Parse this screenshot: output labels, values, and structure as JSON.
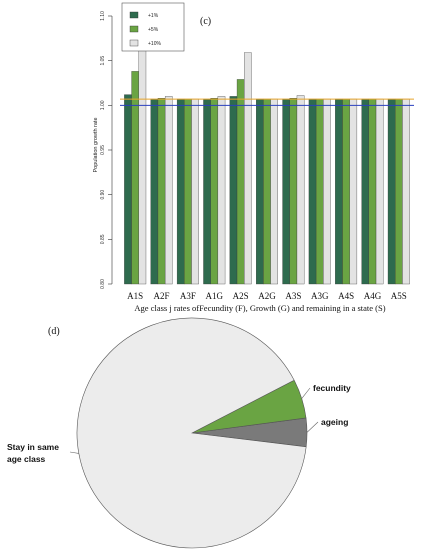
{
  "colors": {
    "dark_green": "#2e6b4e",
    "light_green": "#6aa443",
    "light_grey": "#e3e3e3",
    "pie_grey": "#ececec",
    "ageing_grey": "#7a7a7a",
    "baseline_blue": "#2a3fbf",
    "baseline_orange": "#e7a52a"
  },
  "chart_data": [
    {
      "type": "bar",
      "panel_label": "(c)",
      "ylabel": "Population growth rate",
      "xlabel": "Age class j rates ofFecundity (F), Growth (G) and remaining in a state (S)",
      "ylim": [
        0.8,
        1.1
      ],
      "yticks": [
        "0.80",
        "0.85",
        "0.90",
        "0.95",
        "1.00",
        "1.05",
        "1.10"
      ],
      "grid": false,
      "legend_position": "top-left",
      "reference_lines": [
        1.0,
        1.007
      ],
      "categories": [
        "A1S",
        "A2F",
        "A3F",
        "A1G",
        "A2S",
        "A2G",
        "A3S",
        "A3G",
        "A4S",
        "A4G",
        "A5S"
      ],
      "series": [
        {
          "name": "+1%",
          "values": [
            1.012,
            1.007,
            1.007,
            1.007,
            1.01,
            1.007,
            1.007,
            1.007,
            1.007,
            1.007,
            1.007
          ]
        },
        {
          "name": "+5%",
          "values": [
            1.038,
            1.008,
            1.007,
            1.008,
            1.029,
            1.007,
            1.008,
            1.007,
            1.007,
            1.007,
            1.007
          ]
        },
        {
          "name": "+10%",
          "values": [
            1.07,
            1.01,
            1.007,
            1.01,
            1.059,
            1.007,
            1.011,
            1.007,
            1.007,
            1.007,
            1.007
          ]
        }
      ]
    },
    {
      "type": "pie",
      "panel_label": "(d)",
      "slices": [
        {
          "label": "Stay in same age class",
          "value": 0.905
        },
        {
          "label": "fecundity",
          "value": 0.055
        },
        {
          "label": "ageing",
          "value": 0.04
        }
      ]
    }
  ]
}
